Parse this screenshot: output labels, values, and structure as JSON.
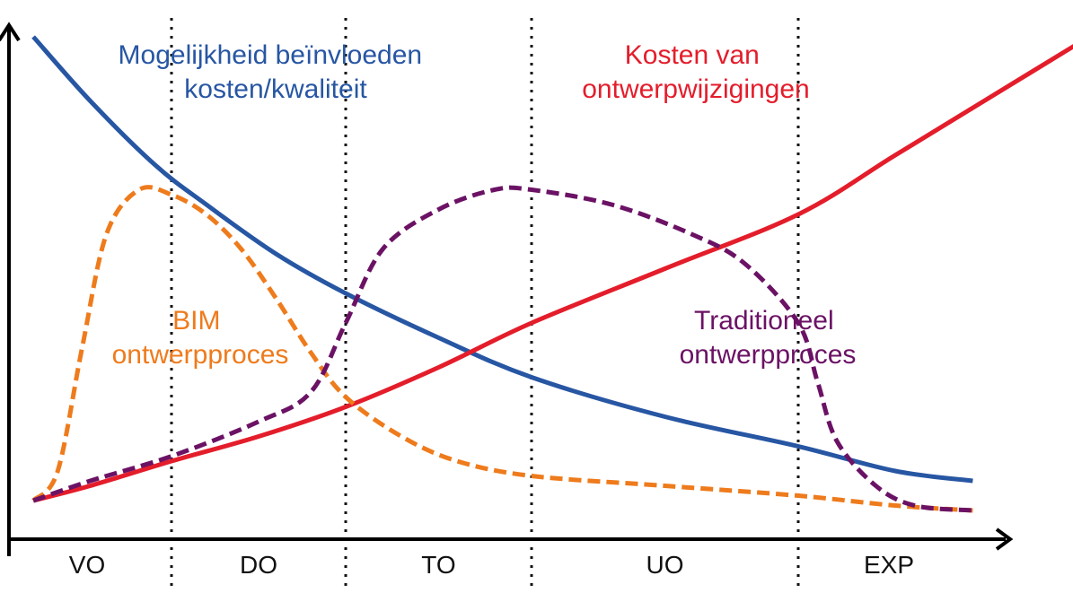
{
  "chart_data": {
    "type": "line",
    "title": "",
    "xlabel": "",
    "ylabel": "",
    "x_axis_arrow": true,
    "y_axis_arrow": true,
    "grid": "dotted vertical phase dividers",
    "categories": [
      "VO",
      "DO",
      "TO",
      "UO",
      "EXP"
    ],
    "phase_boundaries": [
      1,
      2,
      3,
      4
    ],
    "xlim": [
      0,
      5
    ],
    "ylim": [
      0,
      1
    ],
    "series": [
      {
        "key": "blue",
        "name_lines": [
          "Mogelijkheid beïnvloeden",
          "kosten/kwaliteit"
        ],
        "color": "#2756a3",
        "style": "solid",
        "x": [
          0.15,
          0.5,
          0.9,
          1.2,
          1.6,
          2.0,
          2.5,
          3.0,
          3.5,
          4.0,
          4.5,
          4.9
        ],
        "y": [
          0.98,
          0.85,
          0.72,
          0.64,
          0.54,
          0.46,
          0.37,
          0.29,
          0.21,
          0.15,
          0.1,
          0.08
        ]
      },
      {
        "key": "red",
        "name_lines": [
          "Kosten van",
          "ontwerpwijzigingen"
        ],
        "color": "#e41d2b",
        "style": "solid",
        "x": [
          0.15,
          0.5,
          1.0,
          1.5,
          2.0,
          2.5,
          3.0,
          3.5,
          4.0,
          4.5,
          5.0,
          5.5
        ],
        "y": [
          0.04,
          0.07,
          0.12,
          0.17,
          0.23,
          0.31,
          0.4,
          0.51,
          0.62,
          0.74,
          0.86,
          0.98
        ]
      },
      {
        "key": "orange",
        "name_lines": [
          "BIM",
          "ontwerpproces"
        ],
        "color": "#ee7b1c",
        "style": "dashed",
        "x": [
          0.15,
          0.3,
          0.45,
          0.6,
          0.8,
          1.0,
          1.2,
          1.4,
          1.6,
          1.8,
          2.0,
          2.3,
          2.6,
          3.0,
          3.5,
          4.0,
          4.5,
          4.9
        ],
        "y": [
          0.04,
          0.1,
          0.35,
          0.58,
          0.67,
          0.66,
          0.62,
          0.55,
          0.45,
          0.34,
          0.25,
          0.17,
          0.12,
          0.09,
          0.07,
          0.05,
          0.03,
          0.02
        ]
      },
      {
        "key": "purple",
        "name_lines": [
          "Traditioneel",
          "ontwerpproces"
        ],
        "color": "#6b1265",
        "style": "dashed",
        "x": [
          0.15,
          0.5,
          1.0,
          1.5,
          1.8,
          2.0,
          2.2,
          2.5,
          2.8,
          3.0,
          3.3,
          3.6,
          3.8,
          4.0,
          4.1,
          4.2,
          4.4,
          4.6,
          4.9
        ],
        "y": [
          0.04,
          0.08,
          0.13,
          0.2,
          0.26,
          0.4,
          0.55,
          0.63,
          0.67,
          0.67,
          0.64,
          0.58,
          0.52,
          0.4,
          0.28,
          0.16,
          0.07,
          0.03,
          0.02
        ]
      }
    ]
  }
}
